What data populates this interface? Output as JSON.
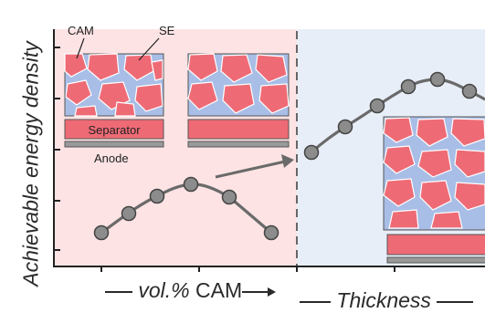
{
  "y_axis_label": "Achievable energy density",
  "x_label_left": {
    "italic": "vol.%",
    "text": " CAM"
  },
  "x_label_right": {
    "italic": "Thickness"
  },
  "labels": {
    "cam": "CAM",
    "se": "SE",
    "separator": "Separator",
    "anode": "Anode"
  },
  "colors": {
    "left_panel_bg": "#fde3e4",
    "right_panel_bg": "#e8eef8",
    "cam_red": "#ee6b76",
    "se_blue": "#a9bee6",
    "marker_gray": "#8c8c8c",
    "line_gray": "#6a6a6a"
  },
  "left_curve_points": 6,
  "right_curve_points": 6
}
